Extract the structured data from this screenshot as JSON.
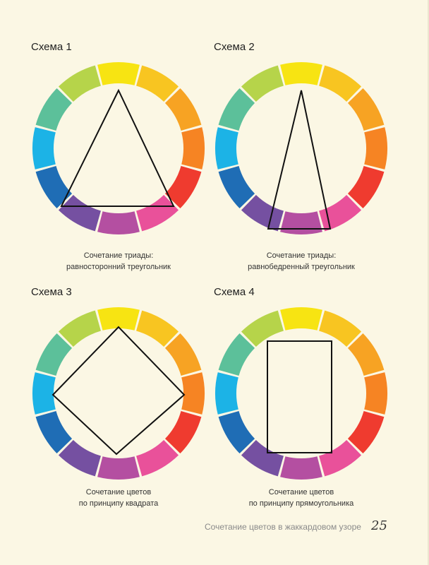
{
  "palette": {
    "background": "#fbf7e4",
    "wheel_segments": [
      "#f7e412",
      "#f8c521",
      "#f7a323",
      "#f68423",
      "#ef3b2f",
      "#e9519a",
      "#b44fa1",
      "#7550a1",
      "#1f6db5",
      "#1cb3e6",
      "#5cc09a",
      "#b6d44a"
    ]
  },
  "panels": [
    {
      "title": "Схема 1",
      "caption": [
        "Сочетание триады:",
        "равносторонний треугольник"
      ],
      "shape": "equilateral-triangle"
    },
    {
      "title": "Схема 2",
      "caption": [
        "Сочетание триады:",
        "равнобедренный треугольник"
      ],
      "shape": "isosceles-triangle"
    },
    {
      "title": "Схема 3",
      "caption": [
        "Сочетание цветов",
        "по принципу квадрата"
      ],
      "shape": "square"
    },
    {
      "title": "Схема 4",
      "caption": [
        "Сочетание цветов",
        "по принципу прямоугольника"
      ],
      "shape": "rectangle"
    }
  ],
  "footer": {
    "running_title": "Сочетание цветов в жаккардовом узоре",
    "page_number": "25"
  }
}
